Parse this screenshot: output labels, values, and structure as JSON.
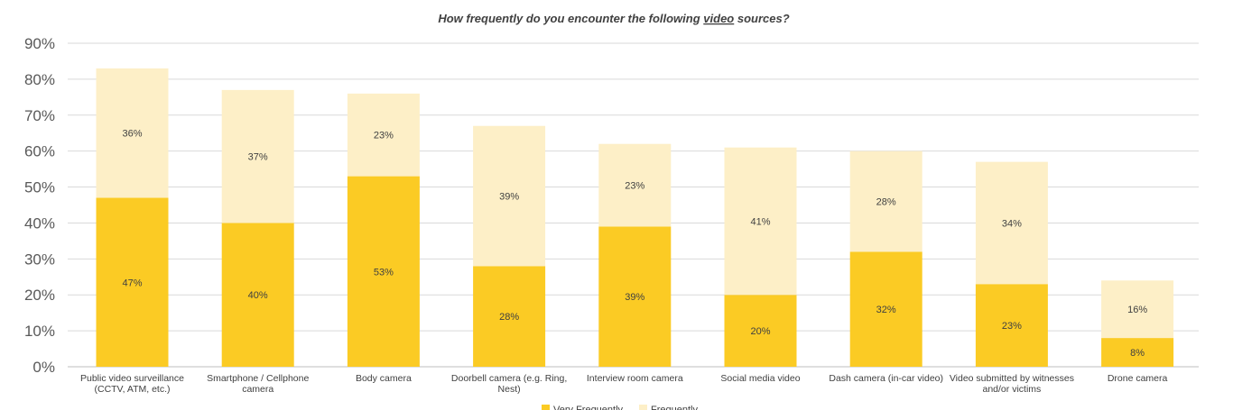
{
  "chart_data": {
    "type": "bar",
    "stacked": true,
    "title_prefix": "How frequently do you encounter the following ",
    "title_emphasis": "video",
    "title_suffix": " sources?",
    "categories": [
      [
        "Public video surveillance",
        "(CCTV, ATM, etc.)"
      ],
      [
        "Smartphone / Cellphone",
        "camera"
      ],
      [
        "Body camera"
      ],
      [
        "Doorbell camera (e.g. Ring,",
        "Nest)"
      ],
      [
        "Interview room camera"
      ],
      [
        "Social media video"
      ],
      [
        "Dash camera (in-car video)"
      ],
      [
        "Video submitted by witnesses",
        "and/or victims"
      ],
      [
        "Drone camera"
      ]
    ],
    "series": [
      {
        "name": "Very Frequently",
        "color": "#FBCB24",
        "values": [
          47,
          40,
          53,
          28,
          39,
          20,
          32,
          23,
          8
        ],
        "labels": [
          "47%",
          "40%",
          "53%",
          "28%",
          "39%",
          "20%",
          "32%",
          "23%",
          "8%"
        ]
      },
      {
        "name": "Frequently",
        "color": "#FDEFC7",
        "values": [
          36,
          37,
          23,
          39,
          23,
          41,
          28,
          34,
          16
        ],
        "labels": [
          "36%",
          "37%",
          "23%",
          "39%",
          "23%",
          "41%",
          "28%",
          "34%",
          "16%"
        ]
      }
    ],
    "ylim": [
      0,
      90
    ],
    "yticks": [
      0,
      10,
      20,
      30,
      40,
      50,
      60,
      70,
      80,
      90
    ],
    "ytick_labels": [
      "0%",
      "10%",
      "20%",
      "30%",
      "40%",
      "50%",
      "60%",
      "70%",
      "80%",
      "90%"
    ],
    "grid": true,
    "legend_position": "bottom"
  }
}
